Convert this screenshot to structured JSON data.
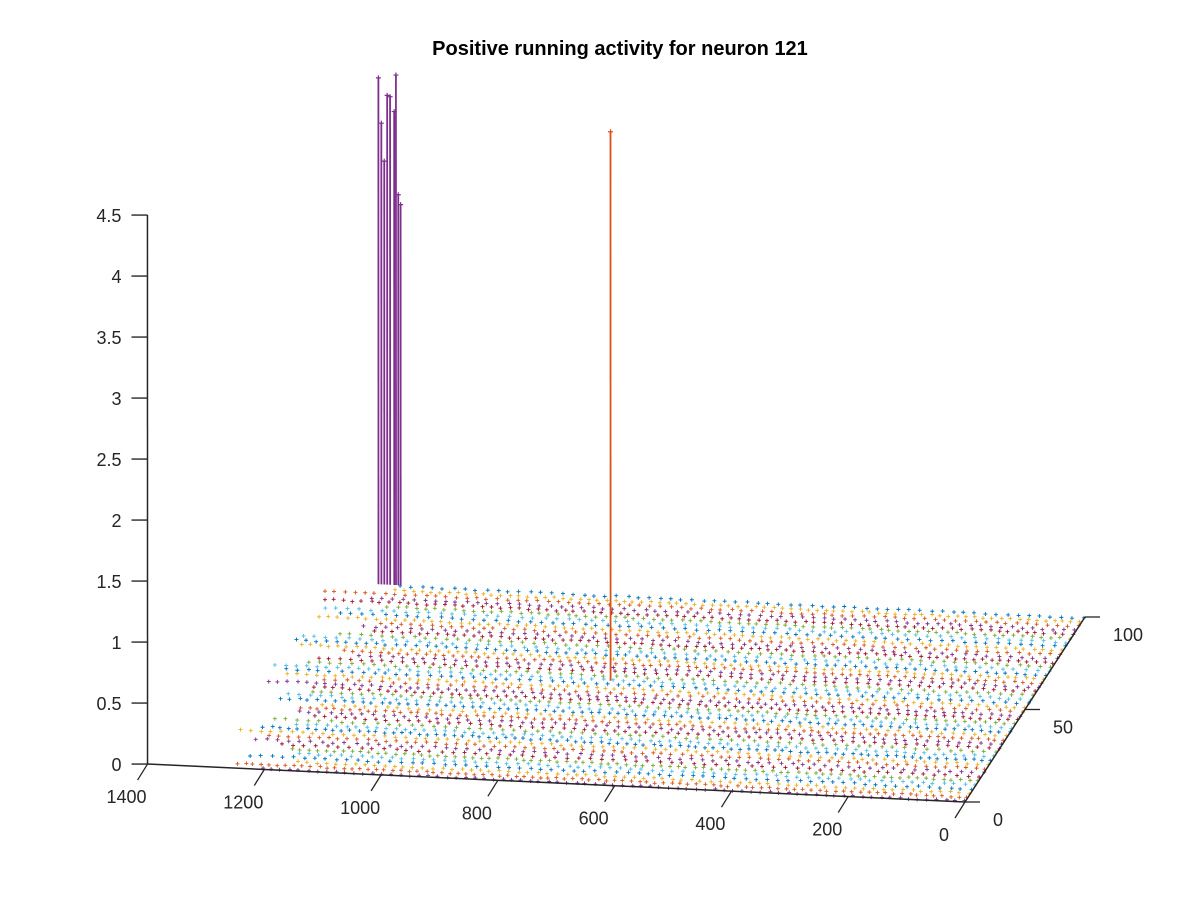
{
  "chart_data": {
    "type": "scatter",
    "subtype": "3d-stem",
    "title": "Positive running activity for neuron 121",
    "xlabel": "",
    "ylabel": "",
    "zlabel": "",
    "xlim": [
      0,
      1400
    ],
    "ylim": [
      0,
      100
    ],
    "zlim": [
      0,
      4.5
    ],
    "x_ticks": [
      0,
      200,
      400,
      600,
      800,
      1000,
      1200,
      1400
    ],
    "y_ticks": [
      0,
      50,
      100
    ],
    "z_ticks": [
      0,
      0.5,
      1,
      1.5,
      2,
      2.5,
      3,
      3.5,
      4,
      4.5
    ],
    "x_tick_labels": [
      "0",
      "200",
      "400",
      "600",
      "800",
      "1000",
      "1200",
      "1400"
    ],
    "y_tick_labels": [
      "0",
      "50",
      "100"
    ],
    "z_tick_labels": [
      "0",
      "0.5",
      "1",
      "1.5",
      "2",
      "2.5",
      "3",
      "3.5",
      "4",
      "4.5"
    ],
    "grid": false,
    "legend": "none",
    "colors": {
      "purple": "#7E2F8E",
      "orange": "#D95319",
      "yellow": "#EDB120",
      "blue": "#0072BD",
      "cyan": "#4DBEEE",
      "green": "#77AC30",
      "red": "#A2142F",
      "axis": "#262626"
    },
    "baseline_markers": {
      "x_range": [
        0,
        1300
      ],
      "y_range": [
        0,
        100
      ],
      "z": 0
    },
    "stems": [
      {
        "x": 1210,
        "y": 100,
        "z": 4.15,
        "color": "#7E2F8E"
      },
      {
        "x": 1205,
        "y": 100,
        "z": 3.78,
        "color": "#7E2F8E"
      },
      {
        "x": 1200,
        "y": 100,
        "z": 3.47,
        "color": "#7E2F8E"
      },
      {
        "x": 1195,
        "y": 100,
        "z": 4.01,
        "color": "#7E2F8E"
      },
      {
        "x": 1190,
        "y": 100,
        "z": 4.0,
        "color": "#7E2F8E"
      },
      {
        "x": 1183,
        "y": 100,
        "z": 3.88,
        "color": "#7E2F8E"
      },
      {
        "x": 1180,
        "y": 100,
        "z": 4.18,
        "color": "#7E2F8E"
      },
      {
        "x": 1176,
        "y": 100,
        "z": 3.2,
        "color": "#7E2F8E"
      },
      {
        "x": 1172,
        "y": 100,
        "z": 3.12,
        "color": "#7E2F8E"
      },
      {
        "x": 720,
        "y": 55,
        "z": 4.5,
        "color": "#D95319"
      }
    ]
  }
}
